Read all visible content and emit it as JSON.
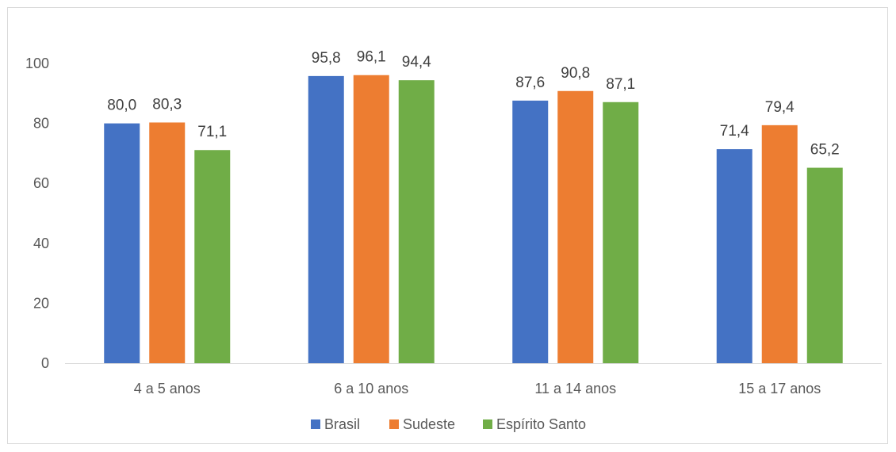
{
  "chart_data": {
    "type": "bar",
    "categories": [
      "4 a 5 anos",
      "6 a 10 anos",
      "11 a 14 anos",
      "15 a 17 anos"
    ],
    "series": [
      {
        "name": "Brasil",
        "values": [
          80.0,
          95.8,
          87.6,
          71.4
        ],
        "labels": [
          "80,0",
          "95,8",
          "87,6",
          "71,4"
        ],
        "color": "#4472c4"
      },
      {
        "name": "Sudeste",
        "values": [
          80.3,
          96.1,
          90.8,
          79.4
        ],
        "labels": [
          "80,3",
          "96,1",
          "90,8",
          "79,4"
        ],
        "color": "#ed7d31"
      },
      {
        "name": "Espírito Santo",
        "values": [
          71.1,
          94.4,
          87.1,
          65.2
        ],
        "labels": [
          "71,1",
          "94,4",
          "87,1",
          "65,2"
        ],
        "color": "#70ad47"
      }
    ],
    "yticks": [
      "0",
      "20",
      "40",
      "60",
      "80",
      "100"
    ],
    "ylim": [
      0,
      100
    ],
    "grid": false,
    "legend": "bottom-center",
    "title": "",
    "xlabel": "",
    "ylabel": ""
  }
}
